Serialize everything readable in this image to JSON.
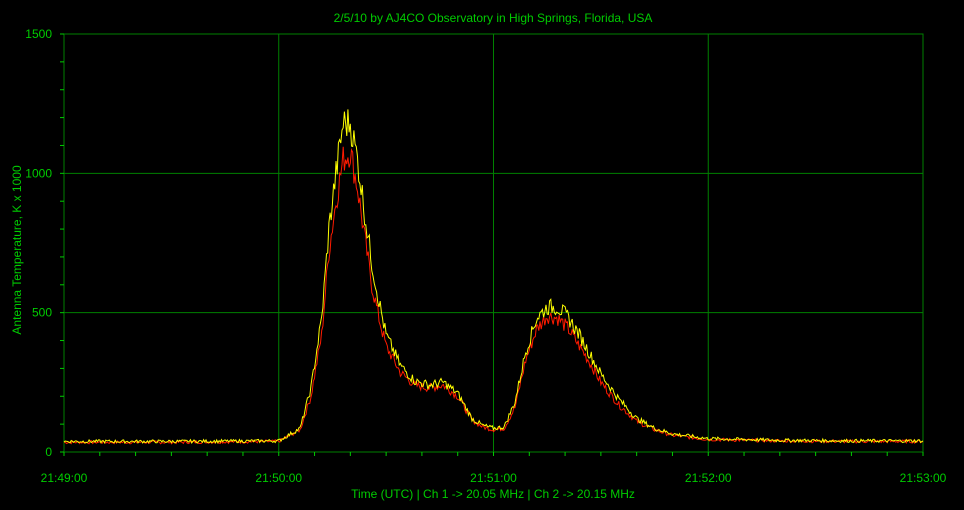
{
  "chart_data": {
    "type": "line",
    "title": "2/5/10  by  AJ4CO Observatory  in  High Springs, Florida, USA",
    "xlabel": "Time (UTC)  |  Ch 1 -> 20.05 MHz  |  Ch 2 -> 20.15 MHz",
    "ylabel": "Antenna Temperature, K x 1000",
    "x_tick_labels": [
      "21:49:00",
      "21:50:00",
      "21:51:00",
      "21:52:00",
      "21:53:00"
    ],
    "y_tick_labels": [
      "0",
      "500",
      "1000",
      "1500"
    ],
    "xlim": [
      "21:49:00",
      "21:53:00"
    ],
    "ylim": [
      0,
      1500
    ],
    "grid": true,
    "colors": {
      "background": "#000000",
      "grid": "#008000",
      "text": "#00cc00",
      "axes": "#00cc00"
    },
    "series": [
      {
        "color": "#ff1a00",
        "x": [
          "21:49:00",
          "21:49:30",
          "21:50:00",
          "21:50:06",
          "21:50:09",
          "21:50:12",
          "21:50:14",
          "21:50:16",
          "21:50:18",
          "21:50:20",
          "21:50:22",
          "21:50:24",
          "21:50:26",
          "21:50:28",
          "21:50:30",
          "21:50:34",
          "21:50:38",
          "21:50:42",
          "21:50:46",
          "21:50:50",
          "21:50:54",
          "21:50:57",
          "21:51:00",
          "21:51:03",
          "21:51:06",
          "21:51:09",
          "21:51:12",
          "21:51:15",
          "21:51:18",
          "21:51:21",
          "21:51:24",
          "21:51:27",
          "21:51:30",
          "21:51:35",
          "21:51:40",
          "21:51:45",
          "21:51:50",
          "21:52:00",
          "21:52:20",
          "21:52:40",
          "21:53:00"
        ],
        "values": [
          35,
          35,
          38,
          80,
          200,
          420,
          720,
          900,
          1050,
          1080,
          950,
          770,
          600,
          480,
          380,
          285,
          240,
          230,
          240,
          200,
          115,
          90,
          80,
          85,
          160,
          330,
          440,
          490,
          480,
          440,
          380,
          320,
          250,
          170,
          110,
          80,
          60,
          45,
          40,
          38,
          38
        ]
      },
      {
        "color": "#ffff00",
        "x": [
          "21:49:00",
          "21:49:30",
          "21:50:00",
          "21:50:06",
          "21:50:09",
          "21:50:12",
          "21:50:14",
          "21:50:16",
          "21:50:18",
          "21:50:20",
          "21:50:22",
          "21:50:24",
          "21:50:26",
          "21:50:28",
          "21:50:30",
          "21:50:34",
          "21:50:38",
          "21:50:42",
          "21:50:46",
          "21:50:50",
          "21:50:54",
          "21:50:57",
          "21:51:00",
          "21:51:03",
          "21:51:06",
          "21:51:09",
          "21:51:12",
          "21:51:15",
          "21:51:18",
          "21:51:21",
          "21:51:24",
          "21:51:27",
          "21:51:30",
          "21:51:35",
          "21:51:40",
          "21:51:45",
          "21:51:50",
          "21:52:00",
          "21:52:20",
          "21:52:40",
          "21:53:00"
        ],
        "values": [
          38,
          38,
          40,
          85,
          230,
          480,
          800,
          1000,
          1180,
          1180,
          1050,
          860,
          680,
          540,
          420,
          310,
          255,
          240,
          250,
          210,
          120,
          95,
          85,
          90,
          180,
          360,
          480,
          520,
          520,
          480,
          420,
          350,
          280,
          190,
          120,
          85,
          65,
          48,
          42,
          40,
          40
        ]
      }
    ]
  }
}
